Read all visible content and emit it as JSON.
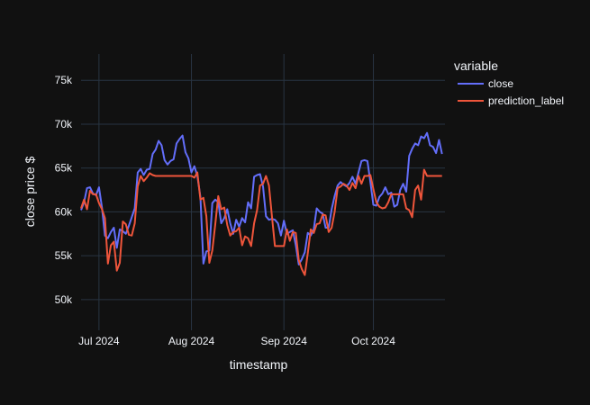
{
  "chart_data": {
    "type": "line",
    "title": "",
    "xlabel": "timestamp",
    "ylabel": "close price $",
    "xlim": [
      "2024-06-25",
      "2024-10-25"
    ],
    "ylim": [
      46500,
      78000
    ],
    "grid": true,
    "legend_placement": "top-right",
    "legend_title": "variable",
    "x_tick_labels": [
      {
        "date": "2024-07-01",
        "label": "Jul 2024"
      },
      {
        "date": "2024-08-01",
        "label": "Aug 2024"
      },
      {
        "date": "2024-09-01",
        "label": "Sep 2024"
      },
      {
        "date": "2024-10-01",
        "label": "Oct 2024"
      }
    ],
    "y_ticks": [
      {
        "value": 50000,
        "label": "50k"
      },
      {
        "value": 55000,
        "label": "55k"
      },
      {
        "value": 60000,
        "label": "60k"
      },
      {
        "value": 65000,
        "label": "65k"
      },
      {
        "value": 70000,
        "label": "70k"
      },
      {
        "value": 75000,
        "label": "75k"
      }
    ],
    "x": [
      "2024-06-25",
      "2024-06-26",
      "2024-06-27",
      "2024-06-28",
      "2024-06-29",
      "2024-06-30",
      "2024-07-01",
      "2024-07-02",
      "2024-07-03",
      "2024-07-04",
      "2024-07-05",
      "2024-07-06",
      "2024-07-07",
      "2024-07-08",
      "2024-07-09",
      "2024-07-10",
      "2024-07-11",
      "2024-07-12",
      "2024-07-13",
      "2024-07-14",
      "2024-07-15",
      "2024-07-16",
      "2024-07-17",
      "2024-07-18",
      "2024-07-19",
      "2024-07-20",
      "2024-07-21",
      "2024-07-22",
      "2024-07-23",
      "2024-07-24",
      "2024-07-25",
      "2024-07-26",
      "2024-07-27",
      "2024-07-28",
      "2024-07-29",
      "2024-07-30",
      "2024-07-31",
      "2024-08-01",
      "2024-08-02",
      "2024-08-03",
      "2024-08-04",
      "2024-08-05",
      "2024-08-06",
      "2024-08-07",
      "2024-08-08",
      "2024-08-09",
      "2024-08-10",
      "2024-08-11",
      "2024-08-12",
      "2024-08-13",
      "2024-08-14",
      "2024-08-15",
      "2024-08-16",
      "2024-08-17",
      "2024-08-18",
      "2024-08-19",
      "2024-08-20",
      "2024-08-21",
      "2024-08-22",
      "2024-08-23",
      "2024-08-24",
      "2024-08-25",
      "2024-08-26",
      "2024-08-27",
      "2024-08-28",
      "2024-08-29",
      "2024-08-30",
      "2024-08-31",
      "2024-09-01",
      "2024-09-02",
      "2024-09-03",
      "2024-09-04",
      "2024-09-05",
      "2024-09-06",
      "2024-09-07",
      "2024-09-08",
      "2024-09-09",
      "2024-09-10",
      "2024-09-11",
      "2024-09-12",
      "2024-09-13",
      "2024-09-14",
      "2024-09-15",
      "2024-09-16",
      "2024-09-17",
      "2024-09-18",
      "2024-09-19",
      "2024-09-20",
      "2024-09-21",
      "2024-09-22",
      "2024-09-23",
      "2024-09-24",
      "2024-09-25",
      "2024-09-26",
      "2024-09-27",
      "2024-09-28",
      "2024-09-29",
      "2024-09-30",
      "2024-10-01",
      "2024-10-02",
      "2024-10-03",
      "2024-10-04",
      "2024-10-05",
      "2024-10-06",
      "2024-10-07",
      "2024-10-08",
      "2024-10-09",
      "2024-10-10",
      "2024-10-11",
      "2024-10-12",
      "2024-10-13",
      "2024-10-14",
      "2024-10-15",
      "2024-10-16",
      "2024-10-17",
      "2024-10-18",
      "2024-10-19",
      "2024-10-20",
      "2024-10-21",
      "2024-10-22",
      "2024-10-23",
      "2024-10-24"
    ],
    "series": [
      {
        "name": "close",
        "color": "#636efa",
        "values": [
          60200,
          61100,
          62700,
          62800,
          62100,
          61900,
          62800,
          60500,
          57300,
          57000,
          57700,
          58200,
          55900,
          58000,
          57800,
          57500,
          58400,
          59400,
          60400,
          64500,
          64900,
          64200,
          64800,
          64900,
          66600,
          67100,
          68100,
          67600,
          65900,
          65400,
          65800,
          66000,
          67800,
          68300,
          68700,
          66800,
          66100,
          64500,
          65200,
          64100,
          61700,
          54100,
          55500,
          55600,
          61000,
          61400,
          61100,
          58700,
          59300,
          60300,
          58700,
          57500,
          59100,
          58300,
          59300,
          58800,
          61100,
          60400,
          64000,
          64200,
          64300,
          62900,
          59500,
          59100,
          59200,
          59100,
          58700,
          57300,
          59000,
          57500,
          57700,
          57900,
          56200,
          54000,
          54600,
          55400,
          57600,
          57300,
          58000,
          60400,
          60000,
          59800,
          58200,
          58200,
          60300,
          61800,
          63000,
          63400,
          63100,
          62900,
          63300,
          64000,
          63200,
          64500,
          65800,
          65900,
          65800,
          63400,
          60800,
          60700,
          61700,
          62100,
          62800,
          62000,
          62200,
          60600,
          60800,
          62500,
          63200,
          62300,
          66400,
          67200,
          67800,
          67600,
          68600,
          68400,
          69000,
          67600,
          67400,
          66700,
          68200,
          66600
        ]
      },
      {
        "name": "prediction_label",
        "color": "#ef553b",
        "values": [
          60400,
          61400,
          60300,
          62400,
          62000,
          62000,
          61000,
          60300,
          59300,
          54100,
          56200,
          56600,
          53300,
          54200,
          58900,
          58600,
          57400,
          57300,
          58700,
          62900,
          64100,
          63500,
          63900,
          64400,
          64200,
          64100,
          64100,
          64100,
          64100,
          64100,
          64100,
          64100,
          64100,
          64100,
          64100,
          64100,
          64100,
          64100,
          63900,
          64500,
          61400,
          61600,
          59500,
          54200,
          55600,
          58600,
          61800,
          60300,
          60500,
          58500,
          57300,
          57700,
          57800,
          58200,
          56200,
          57200,
          57000,
          56100,
          58700,
          60200,
          63000,
          63200,
          64100,
          63000,
          59500,
          56100,
          56100,
          56100,
          56100,
          58000,
          56700,
          57700,
          57600,
          54500,
          53500,
          52800,
          55300,
          58000,
          57600,
          58600,
          58700,
          59700,
          59600,
          57700,
          58200,
          60000,
          62700,
          62900,
          63200,
          63000,
          62500,
          63300,
          62700,
          64100,
          63200,
          64100,
          64100,
          64200,
          62600,
          61100,
          60600,
          60400,
          60500,
          61100,
          62000,
          62000,
          62000,
          62000,
          62000,
          60400,
          60200,
          59400,
          62500,
          63000,
          61400,
          64800,
          64100,
          64100,
          64100,
          64100,
          64100,
          64100
        ]
      }
    ]
  }
}
